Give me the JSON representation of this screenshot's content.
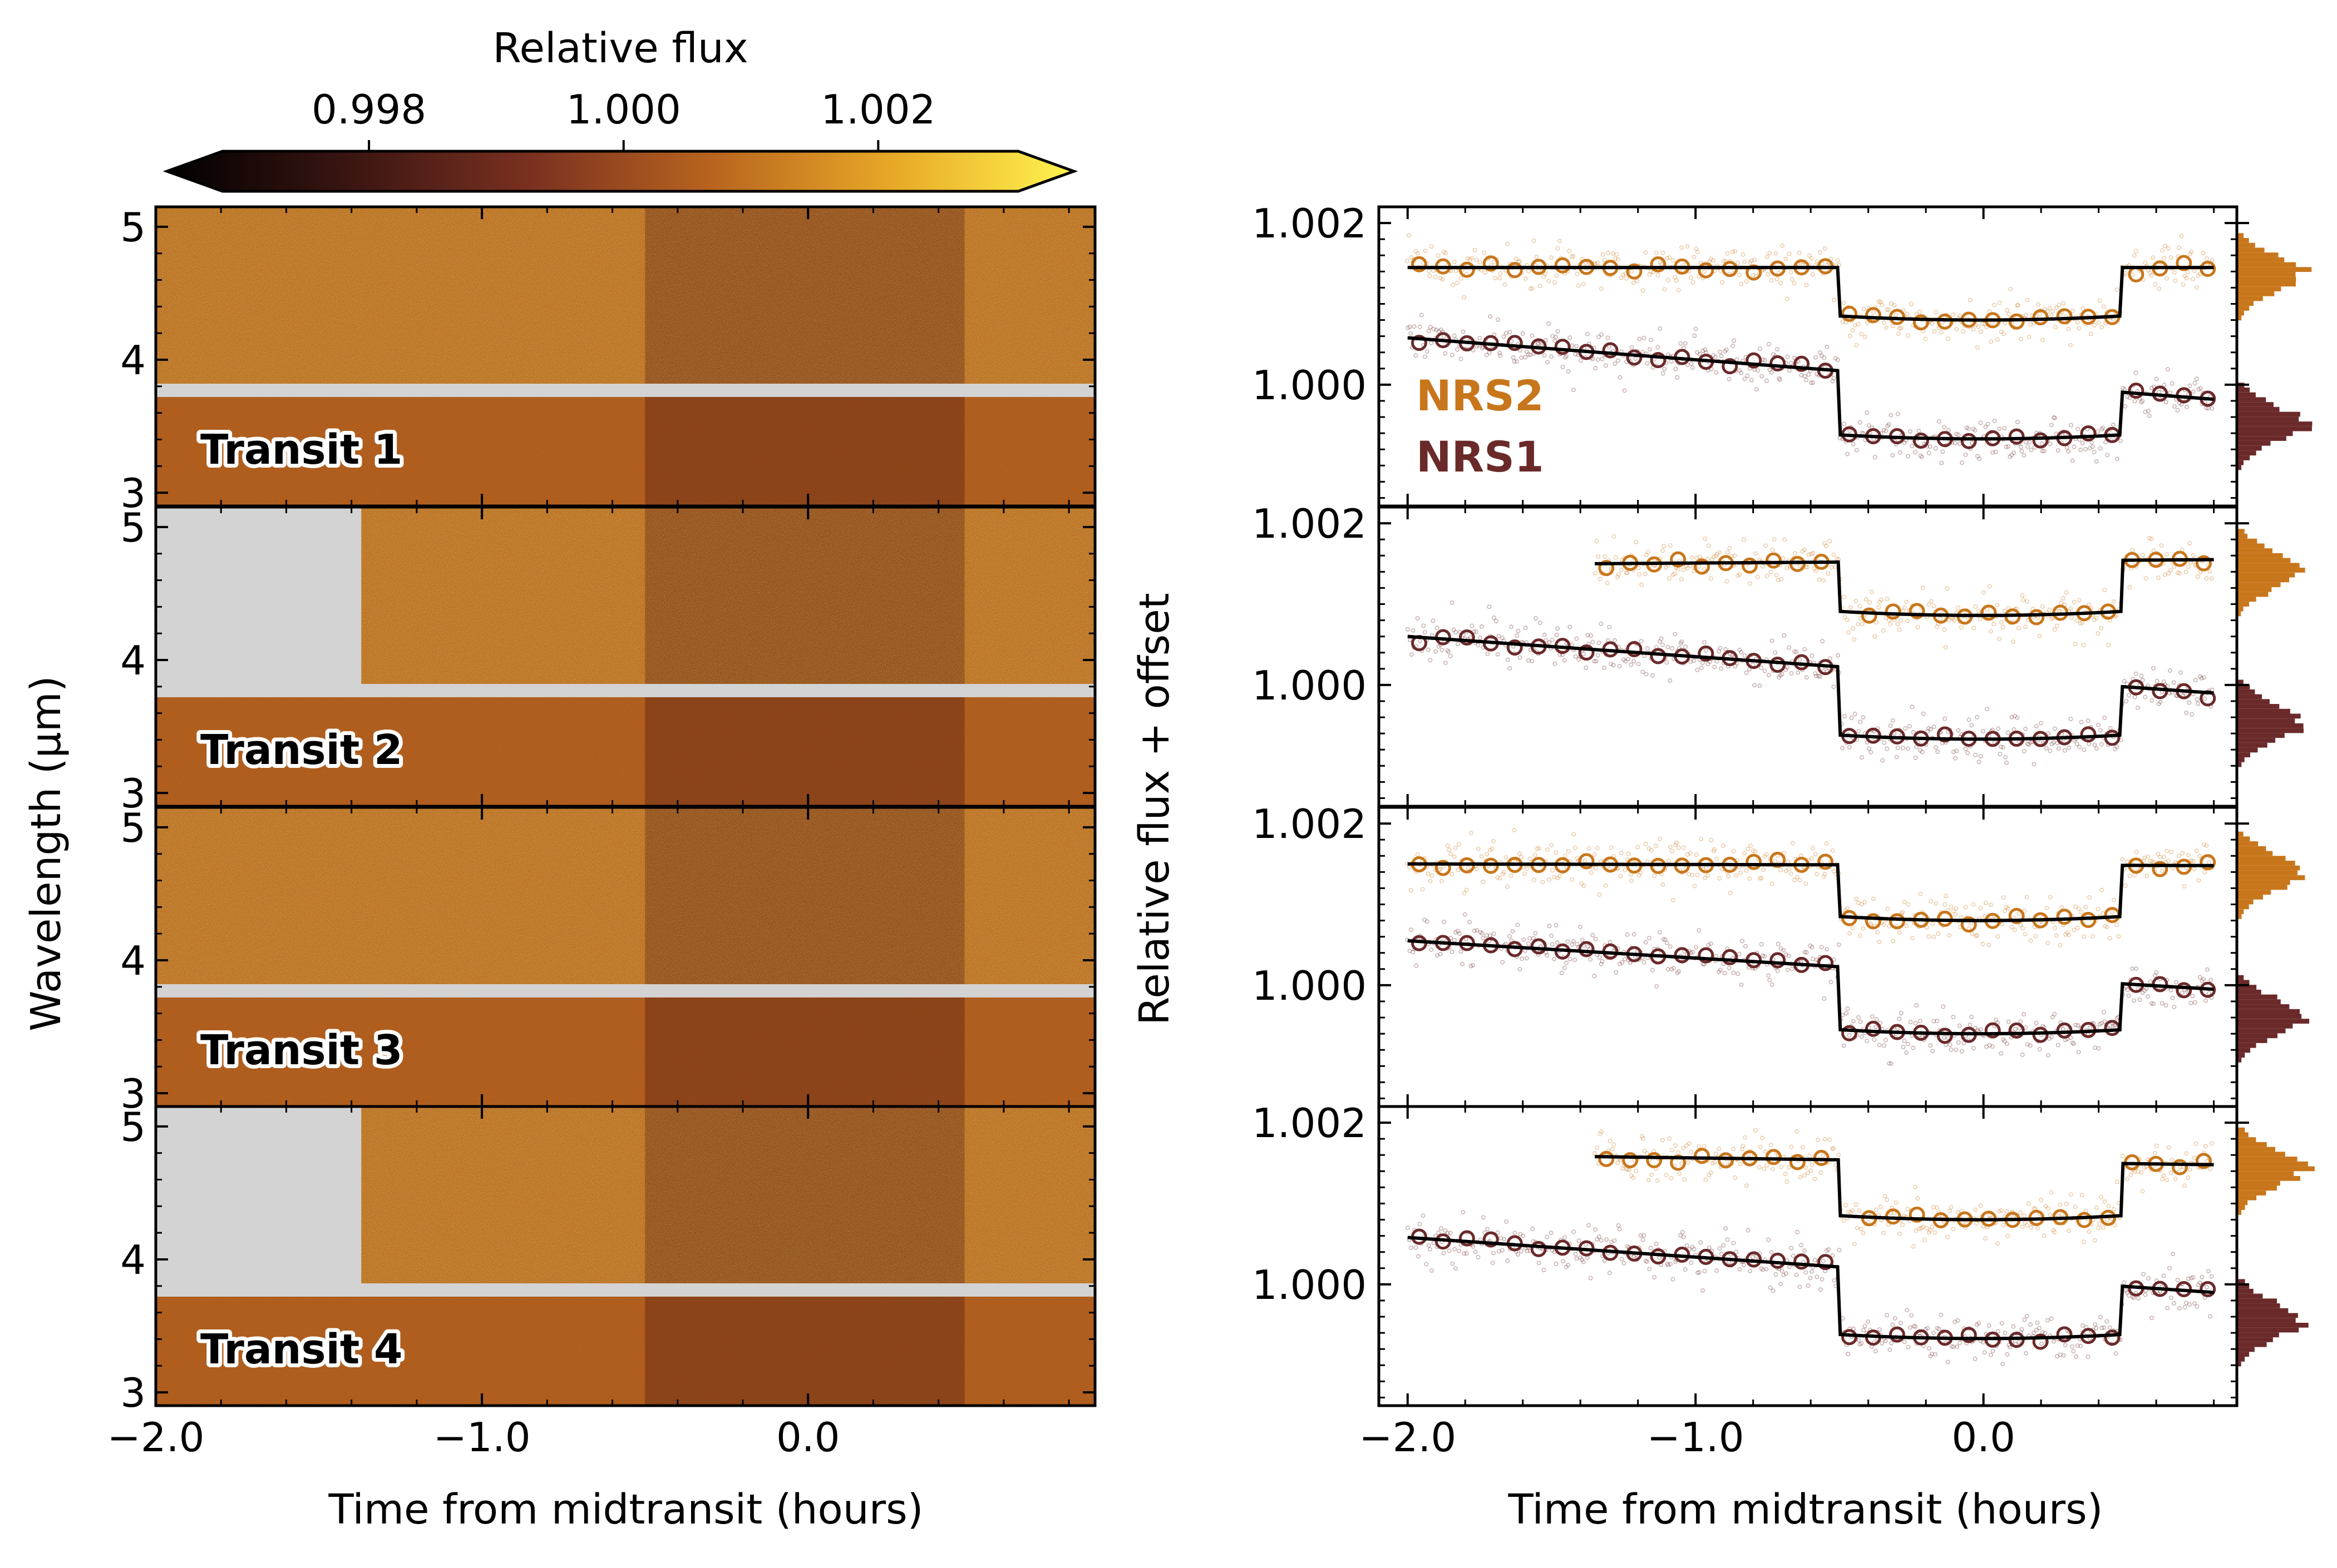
{
  "colorbar": {
    "label": "Relative flux",
    "ticks": [
      0.998,
      1.0,
      1.002
    ],
    "tick_labels": [
      "0.998",
      "1.000",
      "1.002"
    ],
    "range": [
      0.99685,
      1.0031
    ],
    "colormap": [
      "#000000",
      "#3a1512",
      "#7a3020",
      "#b8641f",
      "#e8a827",
      "#fff44f"
    ]
  },
  "left_panel": {
    "ylabel": "Wavelength (μm)",
    "xlabel": "Time from midtransit (hours)",
    "xlim": [
      -2.0,
      0.88
    ],
    "ylim": [
      2.9,
      5.15
    ],
    "yticks": [
      3,
      4,
      5
    ],
    "ytick_labels": [
      "3",
      "4",
      "5"
    ],
    "xticks": [
      -2.0,
      -1.0,
      0.0
    ],
    "xtick_labels": [
      "−2.0",
      "−1.0",
      "0.0"
    ],
    "detector_gap": [
      3.72,
      3.82
    ],
    "transits": [
      {
        "label": "Transit 1",
        "nrs2_start": -2.0
      },
      {
        "label": "Transit 2",
        "nrs2_start": -1.37
      },
      {
        "label": "Transit 3",
        "nrs2_start": -2.0
      },
      {
        "label": "Transit 4",
        "nrs2_start": -1.37
      }
    ]
  },
  "right_panel": {
    "ylabel": "Relative flux + offset",
    "xlabel": "Time from midtransit (hours)",
    "xlim": [
      -2.1,
      0.88
    ],
    "ylim": [
      0.9985,
      1.0022
    ],
    "yticks": [
      1.0,
      1.002
    ],
    "ytick_labels": [
      "1.000",
      "1.002"
    ],
    "xticks": [
      -2.0,
      -1.0,
      0.0
    ],
    "xtick_labels": [
      "−2.0",
      "−1.0",
      "0.0"
    ],
    "legend": [
      {
        "label": "NRS2",
        "color": "#c8761b"
      },
      {
        "label": "NRS1",
        "color": "#6b2a2a"
      }
    ]
  },
  "chart_data": {
    "type": "line",
    "ingress": -0.5,
    "egress": 0.48,
    "transits": [
      {
        "label": "Transit 1",
        "nrs2": {
          "t_start": -2.0,
          "t_end": 0.8,
          "baseline_start": 1.00145,
          "baseline_end": 1.00145,
          "in_transit": 1.00082
        },
        "nrs1": {
          "t_start": -2.0,
          "t_end": 0.8,
          "baseline_start": 1.00058,
          "baseline_end": 0.99982,
          "in_transit": 0.99935
        }
      },
      {
        "label": "Transit 2",
        "nrs2": {
          "t_start": -1.35,
          "t_end": 0.8,
          "baseline_start": 1.0015,
          "baseline_end": 1.00155,
          "in_transit": 1.00088
        },
        "nrs1": {
          "t_start": -2.0,
          "t_end": 0.8,
          "baseline_start": 1.0006,
          "baseline_end": 0.9999,
          "in_transit": 0.99935
        }
      },
      {
        "label": "Transit 3",
        "nrs2": {
          "t_start": -2.0,
          "t_end": 0.8,
          "baseline_start": 1.0015,
          "baseline_end": 1.00148,
          "in_transit": 1.00082
        },
        "nrs1": {
          "t_start": -2.0,
          "t_end": 0.8,
          "baseline_start": 1.00055,
          "baseline_end": 0.99995,
          "in_transit": 0.99942
        }
      },
      {
        "label": "Transit 4",
        "nrs2": {
          "t_start": -1.35,
          "t_end": 0.8,
          "baseline_start": 1.00158,
          "baseline_end": 1.00148,
          "in_transit": 1.00082
        },
        "nrs1": {
          "t_start": -2.0,
          "t_end": 0.8,
          "baseline_start": 1.00058,
          "baseline_end": 0.9999,
          "in_transit": 0.99935
        }
      }
    ]
  }
}
